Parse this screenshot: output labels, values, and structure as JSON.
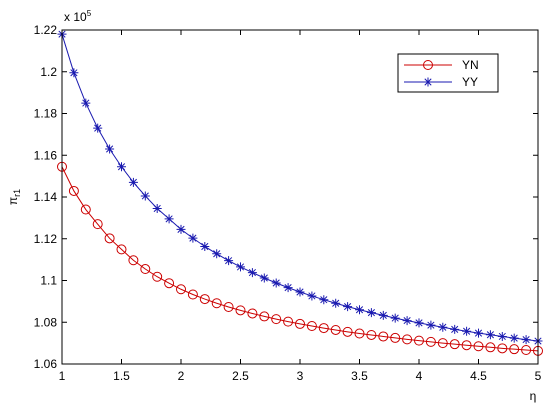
{
  "chart_data": {
    "type": "line",
    "xlabel": "η",
    "ylabel": "π",
    "ylabel_sub": "r1",
    "exponent_label": "x 10",
    "exponent_power": "5",
    "xlim": [
      1,
      5
    ],
    "ylim": [
      1.06,
      1.22
    ],
    "xticks": [
      1,
      1.5,
      2,
      2.5,
      3,
      3.5,
      4,
      4.5,
      5
    ],
    "xtick_labels": [
      "1",
      "1.5",
      "2",
      "2.5",
      "3",
      "3.5",
      "4",
      "4.5",
      "5"
    ],
    "yticks": [
      1.06,
      1.08,
      1.1,
      1.12,
      1.14,
      1.16,
      1.18,
      1.2,
      1.22
    ],
    "ytick_labels": [
      "1.06",
      "1.08",
      "1.1",
      "1.12",
      "1.14",
      "1.16",
      "1.18",
      "1.2",
      "1.22"
    ],
    "grid": false,
    "legend_position": "top-right",
    "x": [
      1.0,
      1.1,
      1.2,
      1.3,
      1.4,
      1.5,
      1.6,
      1.7,
      1.8,
      1.9,
      2.0,
      2.1,
      2.2,
      2.3,
      2.4,
      2.5,
      2.6,
      2.7,
      2.8,
      2.9,
      3.0,
      3.1,
      3.2,
      3.3,
      3.4,
      3.5,
      3.6,
      3.7,
      3.8,
      3.9,
      4.0,
      4.1,
      4.2,
      4.3,
      4.4,
      4.5,
      4.6,
      4.7,
      4.8,
      4.9,
      5.0
    ],
    "series": [
      {
        "name": "YN",
        "color": "#cc0000",
        "marker": "circle",
        "values": [
          1.1545,
          1.1429,
          1.134,
          1.127,
          1.1202,
          1.1149,
          1.1097,
          1.1055,
          1.1018,
          1.0987,
          1.0958,
          1.0933,
          1.0911,
          1.0891,
          1.0873,
          1.0857,
          1.0842,
          1.0828,
          1.0815,
          1.0803,
          1.0792,
          1.0782,
          1.0772,
          1.0763,
          1.0754,
          1.0746,
          1.0739,
          1.0732,
          1.0725,
          1.0718,
          1.0712,
          1.0706,
          1.07,
          1.0695,
          1.069,
          1.0685,
          1.068,
          1.0675,
          1.0671,
          1.0667,
          1.0663
        ]
      },
      {
        "name": "YY",
        "color": "#1a1ab0",
        "marker": "star",
        "values": [
          1.218,
          1.1995,
          1.185,
          1.173,
          1.163,
          1.1545,
          1.147,
          1.1405,
          1.1345,
          1.1295,
          1.1245,
          1.1203,
          1.1163,
          1.1128,
          1.1095,
          1.1065,
          1.1038,
          1.1012,
          1.0988,
          1.0966,
          1.0945,
          1.0926,
          1.0908,
          1.0891,
          1.0875,
          1.086,
          1.0846,
          1.0833,
          1.082,
          1.0808,
          1.0797,
          1.0786,
          1.0776,
          1.0766,
          1.0757,
          1.0748,
          1.074,
          1.0732,
          1.0724,
          1.0717,
          1.071
        ]
      }
    ]
  }
}
